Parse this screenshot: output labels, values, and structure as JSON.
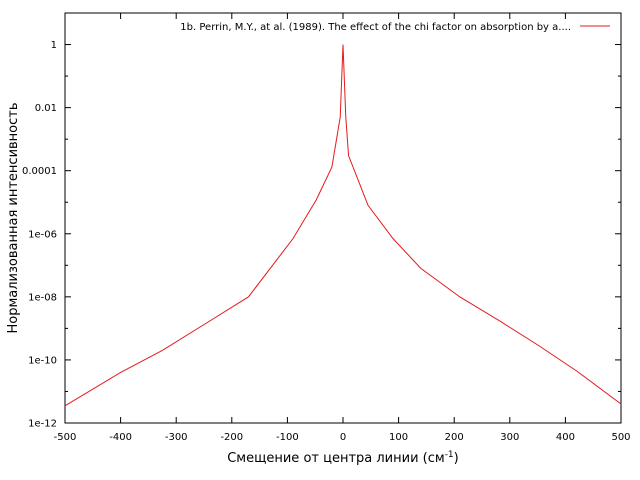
{
  "chart_data": {
    "type": "line",
    "title": "",
    "xlabel": "Смещение от центра линии (см",
    "xlabel_sup": "-1",
    "xlabel_tail": ")",
    "ylabel": "Нормализованная интенсивность",
    "xlim": [
      -500,
      500
    ],
    "ylim": [
      1e-12,
      10
    ],
    "yscale": "log",
    "grid": false,
    "legend_position": "top-right",
    "x_ticks": [
      -500,
      -400,
      -300,
      -200,
      -100,
      0,
      100,
      200,
      300,
      400,
      500
    ],
    "x_tick_labels": [
      "-500",
      "-400",
      "-300",
      "-200",
      "-100",
      "0",
      "100",
      "200",
      "300",
      "400",
      "500"
    ],
    "y_ticks": [
      1e-12,
      1e-10,
      1e-08,
      1e-06,
      0.0001,
      0.01,
      1
    ],
    "y_tick_labels": [
      "1e-12",
      "1e-10",
      "1e-08",
      "1e-06",
      "0.0001",
      "0.01",
      "1"
    ],
    "series": [
      {
        "name": "1b. Perrin, M.Y., at al. (1989). The effect of the chi factor on absorption by a....",
        "color": "#e41a1c",
        "x": [
          -500,
          -400,
          -325,
          -240,
          -170,
          -90,
          -48,
          -20,
          -5,
          0,
          5,
          10,
          45,
          90,
          140,
          210,
          280,
          350,
          420,
          500
        ],
        "y": [
          3.5e-12,
          4e-11,
          2e-10,
          1.7e-09,
          1e-08,
          7e-07,
          1.2e-05,
          0.00013,
          0.005,
          1,
          0.005,
          0.0003,
          8e-06,
          7e-07,
          8e-08,
          1e-08,
          1.8e-09,
          3e-10,
          4.5e-11,
          4e-12
        ]
      }
    ]
  }
}
